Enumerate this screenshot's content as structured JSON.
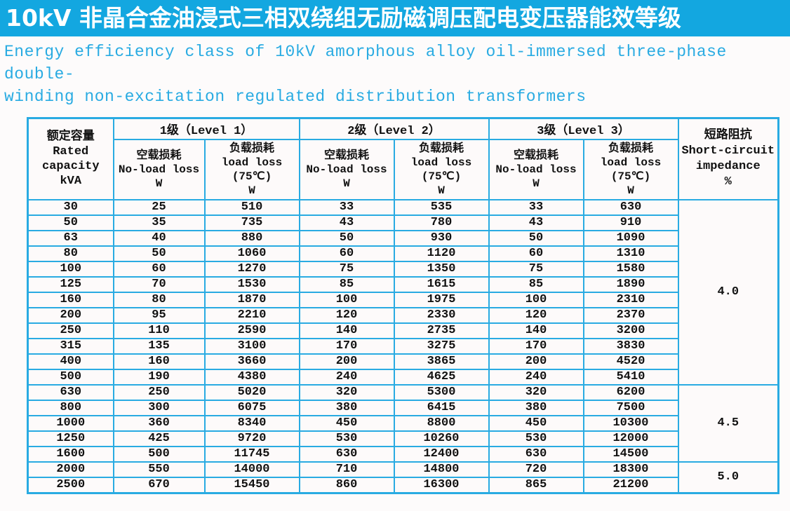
{
  "title": "10kV 非晶合金油浸式三相双绕组无励磁调压配电变压器能效等级",
  "subtitle": {
    "line1": "Energy efficiency class of 10kV amorphous alloy oil-immersed three-phase double-",
    "line2": "winding non-excitation regulated distribution transformers"
  },
  "colors": {
    "title_bg": "#13a7e0",
    "title_text": "#ffffff",
    "accent": "#29abe2",
    "table_text": "#111111",
    "page_bg": "#fdfbfb"
  },
  "table": {
    "capacity_header": "额定容量\nRated\ncapacity\nkVA",
    "level_headers": [
      "1级（Level 1）",
      "2级（Level 2）",
      "3级（Level 3）"
    ],
    "no_load_header": "空载损耗\nNo-load loss\nW",
    "load_header": "负载损耗\nload loss\n(75℃)\nW",
    "impedance_header": "短路阻抗\nShort-circuit\nimpedance\n%",
    "groups": [
      {
        "impedance": "4.0",
        "rows": [
          [
            "30",
            "25",
            "510",
            "33",
            "535",
            "33",
            "630"
          ],
          [
            "50",
            "35",
            "735",
            "43",
            "780",
            "43",
            "910"
          ],
          [
            "63",
            "40",
            "880",
            "50",
            "930",
            "50",
            "1090"
          ],
          [
            "80",
            "50",
            "1060",
            "60",
            "1120",
            "60",
            "1310"
          ],
          [
            "100",
            "60",
            "1270",
            "75",
            "1350",
            "75",
            "1580"
          ],
          [
            "125",
            "70",
            "1530",
            "85",
            "1615",
            "85",
            "1890"
          ],
          [
            "160",
            "80",
            "1870",
            "100",
            "1975",
            "100",
            "2310"
          ],
          [
            "200",
            "95",
            "2210",
            "120",
            "2330",
            "120",
            "2370"
          ],
          [
            "250",
            "110",
            "2590",
            "140",
            "2735",
            "140",
            "3200"
          ],
          [
            "315",
            "135",
            "3100",
            "170",
            "3275",
            "170",
            "3830"
          ],
          [
            "400",
            "160",
            "3660",
            "200",
            "3865",
            "200",
            "4520"
          ],
          [
            "500",
            "190",
            "4380",
            "240",
            "4625",
            "240",
            "5410"
          ]
        ]
      },
      {
        "impedance": "4.5",
        "rows": [
          [
            "630",
            "250",
            "5020",
            "320",
            "5300",
            "320",
            "6200"
          ],
          [
            "800",
            "300",
            "6075",
            "380",
            "6415",
            "380",
            "7500"
          ],
          [
            "1000",
            "360",
            "8340",
            "450",
            "8800",
            "450",
            "10300"
          ],
          [
            "1250",
            "425",
            "9720",
            "530",
            "10260",
            "530",
            "12000"
          ],
          [
            "1600",
            "500",
            "11745",
            "630",
            "12400",
            "630",
            "14500"
          ]
        ]
      },
      {
        "impedance": "5.0",
        "rows": [
          [
            "2000",
            "550",
            "14000",
            "710",
            "14800",
            "720",
            "18300"
          ],
          [
            "2500",
            "670",
            "15450",
            "860",
            "16300",
            "865",
            "21200"
          ]
        ]
      }
    ]
  }
}
